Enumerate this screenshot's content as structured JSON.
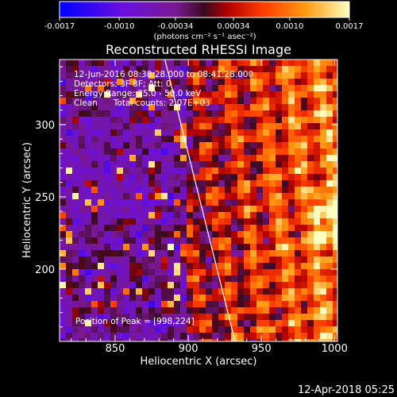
{
  "chart_data": {
    "type": "heatmap",
    "title": "Reconstructed RHESSI Image",
    "xlabel": "Heliocentric X (arcsec)",
    "ylabel": "Heliocentric Y (arcsec)",
    "xlim": [
      812,
      1002
    ],
    "ylim": [
      150,
      345
    ],
    "xticks": [
      850,
      900,
      950,
      1000
    ],
    "yticks": [
      200,
      250,
      300
    ],
    "colorbar": {
      "ticks": [
        -0.0017,
        -0.001,
        -0.00034,
        0.00034,
        0.001,
        0.0017
      ],
      "tick_labels": [
        "-0.0017",
        "-0.0010",
        "-0.00034",
        "0.00034",
        "0.0010",
        "0.0017"
      ],
      "unit_label": "(photons cm⁻² s⁻¹ asec⁻²)",
      "range": [
        -0.0017,
        0.0017
      ],
      "colors": [
        "#0000ff",
        "#7a00d0",
        "#4b1a40",
        "#ff3000",
        "#ff9000",
        "#ffffa0"
      ]
    },
    "info_lines": [
      "12-Jun-2016 08:38:28.000 to 08:41:28.000",
      "Detectors: 3F 8F; Att: 0",
      "Energy Range: 25.0 - 50.0 keV",
      "Clean      Total counts: 2.07E+03"
    ],
    "peak_label": "Position of Peak = [998,224]",
    "limb_line": {
      "points": [
        [
          884,
          345
        ],
        [
          932,
          150
        ]
      ],
      "color": "#ffffff"
    },
    "peak_position": [
      998,
      224
    ],
    "grid": false
  },
  "footer": {
    "date": "12-Apr-2018 05:25"
  }
}
